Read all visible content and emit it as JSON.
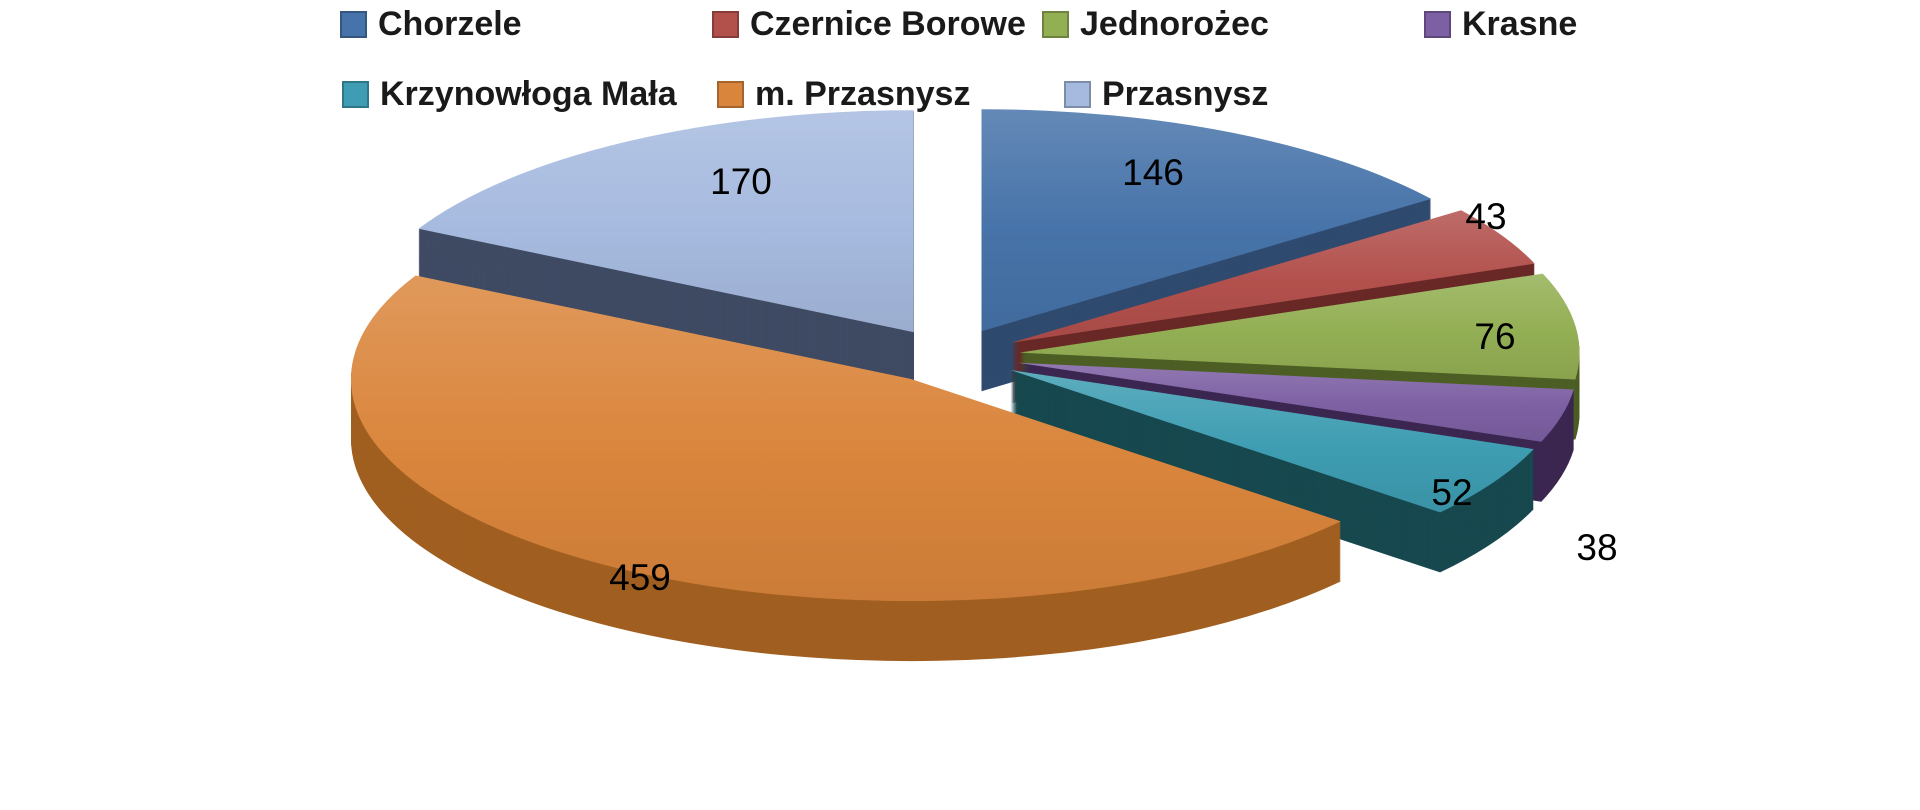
{
  "chart_data": {
    "type": "pie",
    "style": "3d-exploded",
    "title": "",
    "legend_position": "top",
    "grid": false,
    "categories": [
      "Chorzele",
      "Czernice Borowe",
      "Jednorożec",
      "Krasne",
      "Krzynowłoga Mała",
      "m. Przasnysz",
      "Przasnysz"
    ],
    "values": [
      146,
      43,
      76,
      38,
      52,
      459,
      170
    ],
    "data_labels": [
      "146",
      "43",
      "76",
      "38",
      "52",
      "459",
      "170"
    ],
    "colors": [
      "#4673A9",
      "#B2504C",
      "#93AF54",
      "#7D60A3",
      "#3E9DB2",
      "#DA853C",
      "#A6BADF"
    ],
    "side_colors": [
      "#2F4A6E",
      "#692826",
      "#4C5E24",
      "#3B2750",
      "#17484F",
      "#A05F20",
      "#3F4A63"
    ],
    "label_color": "#000000",
    "background": "#FFFFFF"
  }
}
